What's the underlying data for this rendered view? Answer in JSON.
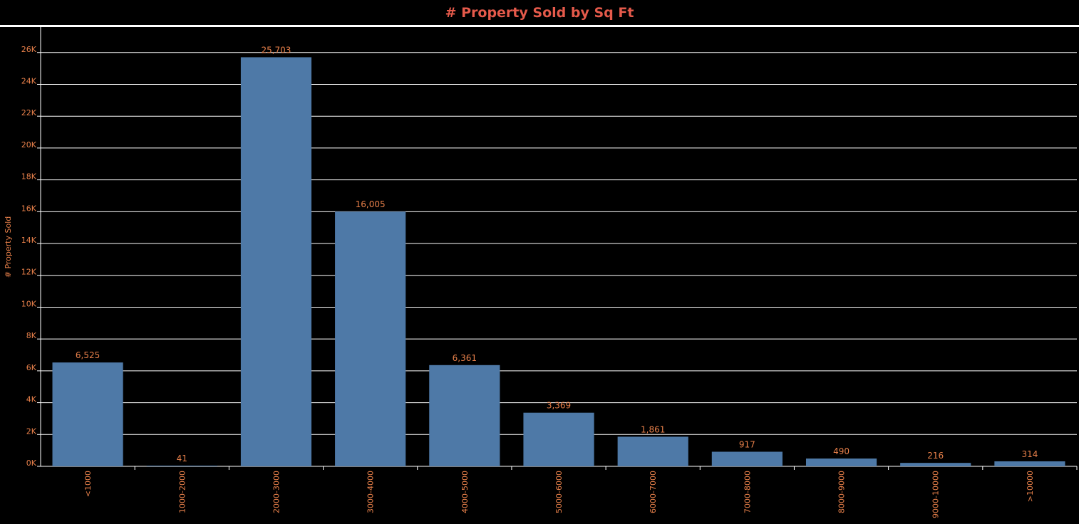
{
  "page": {
    "title": "# Property Sold by Sq Ft"
  },
  "colors": {
    "background": "#000000",
    "bar": "#4e79a7",
    "text": "#e8804a",
    "title": "#e55a4b",
    "grid": "#ffffff"
  },
  "chart_data": {
    "type": "bar",
    "title": "# Property Sold by Sq Ft",
    "xlabel": "",
    "ylabel": "# Property Sold",
    "categories": [
      "<1000",
      "1000-2000",
      "2000-3000",
      "3000-4000",
      "4000-5000",
      "5000-6000",
      "6000-7000",
      "7000-8000",
      "8000-9000",
      "9000-10000",
      ">10000"
    ],
    "values": [
      6525,
      41,
      25703,
      16005,
      6361,
      3369,
      1861,
      917,
      490,
      216,
      314
    ],
    "data_labels": [
      "6,525",
      "41",
      "25,703",
      "16,005",
      "6,361",
      "3,369",
      "1,861",
      "917",
      "490",
      "216",
      "314"
    ],
    "ylim": [
      0,
      27600
    ],
    "yticks": [
      0,
      2000,
      4000,
      6000,
      8000,
      10000,
      12000,
      14000,
      16000,
      18000,
      20000,
      22000,
      24000,
      26000
    ],
    "ytick_labels": [
      "0K",
      "2K",
      "4K",
      "6K",
      "8K",
      "10K",
      "12K",
      "14K",
      "16K",
      "18K",
      "20K",
      "22K",
      "24K",
      "26K"
    ],
    "grid": true,
    "legend": "none"
  }
}
